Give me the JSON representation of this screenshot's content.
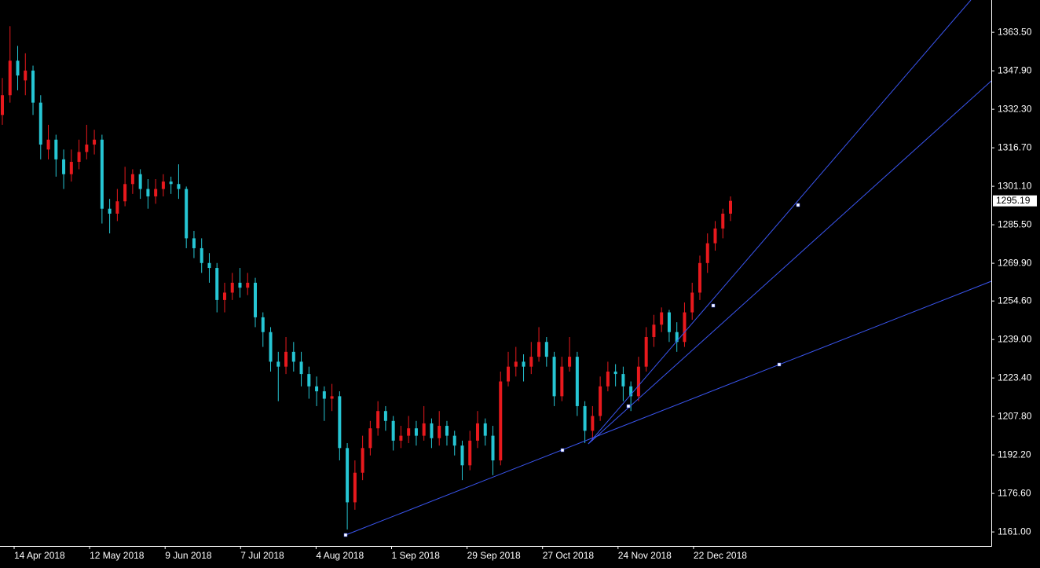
{
  "chart_data": {
    "type": "candlestick",
    "up_color": "#e8191d",
    "down_color": "#26c6d4",
    "ylim": [
      1155.3,
      1376.6
    ],
    "yticks": [
      {
        "value": 1161,
        "label": "1161.00"
      },
      {
        "value": 1176.6,
        "label": "1176.60"
      },
      {
        "value": 1192.2,
        "label": "1192.20"
      },
      {
        "value": 1207.8,
        "label": "1207.80"
      },
      {
        "value": 1223.4,
        "label": "1223.40"
      },
      {
        "value": 1239,
        "label": "1239.00"
      },
      {
        "value": 1254.6,
        "label": "1254.60"
      },
      {
        "value": 1269.9,
        "label": "1269.90"
      },
      {
        "value": 1285.5,
        "label": "1285.50"
      },
      {
        "value": 1301.1,
        "label": "1301.10"
      },
      {
        "value": 1316.7,
        "label": "1316.70"
      },
      {
        "value": 1332.3,
        "label": "1332.30"
      },
      {
        "value": 1347.9,
        "label": "1347.90"
      },
      {
        "value": 1363.5,
        "label": "1363.50"
      }
    ],
    "xtick_labels": [
      "14 Apr 2018",
      "12 May 2018",
      "9 Jun 2018",
      "7 Jul 2018",
      "4 Aug 2018",
      "1 Sep 2018",
      "29 Sep 2018",
      "27 Oct 2018",
      "24 Nov 2018",
      "22 Dec 2018"
    ],
    "last_price": {
      "value": 1295.19,
      "label": "1295.19"
    },
    "candles": [
      [
        1330,
        1345,
        1326,
        1338
      ],
      [
        1338,
        1366,
        1335,
        1352
      ],
      [
        1352,
        1358,
        1340,
        1346
      ],
      [
        1344,
        1355,
        1338,
        1348
      ],
      [
        1348,
        1350,
        1330,
        1335
      ],
      [
        1335,
        1338,
        1312,
        1318
      ],
      [
        1316,
        1326,
        1312,
        1320
      ],
      [
        1320,
        1322,
        1305,
        1312
      ],
      [
        1312,
        1316,
        1300,
        1306
      ],
      [
        1306,
        1316,
        1303,
        1311
      ],
      [
        1311,
        1320,
        1308,
        1315
      ],
      [
        1315,
        1326,
        1312,
        1318
      ],
      [
        1318,
        1324,
        1314,
        1320
      ],
      [
        1320,
        1322,
        1286,
        1292
      ],
      [
        1292,
        1296,
        1282,
        1290
      ],
      [
        1290,
        1300,
        1287,
        1295
      ],
      [
        1295,
        1309,
        1293,
        1302
      ],
      [
        1302,
        1308,
        1298,
        1306
      ],
      [
        1306,
        1308,
        1296,
        1300
      ],
      [
        1300,
        1304,
        1292,
        1297
      ],
      [
        1297,
        1304,
        1294,
        1300
      ],
      [
        1300,
        1306,
        1297,
        1303
      ],
      [
        1303,
        1305,
        1298,
        1302
      ],
      [
        1302,
        1310,
        1296,
        1300
      ],
      [
        1300,
        1301,
        1276,
        1280
      ],
      [
        1280,
        1283,
        1272,
        1276
      ],
      [
        1276,
        1280,
        1266,
        1270
      ],
      [
        1270,
        1274,
        1262,
        1268
      ],
      [
        1268,
        1270,
        1250,
        1255
      ],
      [
        1255,
        1262,
        1250,
        1258
      ],
      [
        1258,
        1266,
        1255,
        1262
      ],
      [
        1262,
        1268,
        1256,
        1260
      ],
      [
        1260,
        1266,
        1257,
        1262
      ],
      [
        1262,
        1264,
        1244,
        1248
      ],
      [
        1248,
        1250,
        1236,
        1242
      ],
      [
        1242,
        1244,
        1226,
        1230
      ],
      [
        1230,
        1234,
        1214,
        1228
      ],
      [
        1228,
        1240,
        1225,
        1234
      ],
      [
        1234,
        1238,
        1226,
        1230
      ],
      [
        1230,
        1234,
        1220,
        1225
      ],
      [
        1225,
        1228,
        1215,
        1220
      ],
      [
        1220,
        1224,
        1212,
        1218
      ],
      [
        1218,
        1220,
        1206,
        1215
      ],
      [
        1215,
        1221,
        1210,
        1216
      ],
      [
        1216,
        1218,
        1190,
        1195
      ],
      [
        1195,
        1197,
        1162,
        1173
      ],
      [
        1173,
        1190,
        1170,
        1185
      ],
      [
        1185,
        1200,
        1182,
        1195
      ],
      [
        1195,
        1206,
        1192,
        1203
      ],
      [
        1203,
        1214,
        1200,
        1210
      ],
      [
        1210,
        1212,
        1202,
        1206
      ],
      [
        1206,
        1208,
        1194,
        1198
      ],
      [
        1198,
        1204,
        1195,
        1200
      ],
      [
        1200,
        1208,
        1197,
        1203
      ],
      [
        1203,
        1206,
        1196,
        1200
      ],
      [
        1200,
        1212,
        1198,
        1205
      ],
      [
        1205,
        1207,
        1195,
        1199
      ],
      [
        1199,
        1210,
        1196,
        1204
      ],
      [
        1204,
        1206,
        1196,
        1200
      ],
      [
        1200,
        1202,
        1192,
        1196
      ],
      [
        1196,
        1198,
        1182,
        1188
      ],
      [
        1188,
        1202,
        1186,
        1198
      ],
      [
        1198,
        1210,
        1195,
        1205
      ],
      [
        1205,
        1207,
        1196,
        1200
      ],
      [
        1200,
        1204,
        1184,
        1190
      ],
      [
        1190,
        1226,
        1188,
        1222
      ],
      [
        1222,
        1234,
        1220,
        1228
      ],
      [
        1228,
        1236,
        1224,
        1230
      ],
      [
        1230,
        1233,
        1222,
        1228
      ],
      [
        1228,
        1238,
        1225,
        1232
      ],
      [
        1232,
        1244,
        1230,
        1238
      ],
      [
        1238,
        1240,
        1228,
        1232
      ],
      [
        1232,
        1234,
        1212,
        1216
      ],
      [
        1216,
        1232,
        1214,
        1228
      ],
      [
        1228,
        1240,
        1226,
        1232
      ],
      [
        1232,
        1234,
        1208,
        1212
      ],
      [
        1212,
        1214,
        1197,
        1202
      ],
      [
        1202,
        1212,
        1198,
        1208
      ],
      [
        1208,
        1224,
        1206,
        1220
      ],
      [
        1220,
        1230,
        1218,
        1226
      ],
      [
        1226,
        1229,
        1220,
        1225
      ],
      [
        1225,
        1228,
        1214,
        1220
      ],
      [
        1220,
        1222,
        1210,
        1216
      ],
      [
        1216,
        1232,
        1214,
        1228
      ],
      [
        1228,
        1244,
        1226,
        1240
      ],
      [
        1240,
        1249,
        1236,
        1245
      ],
      [
        1245,
        1252,
        1242,
        1250
      ],
      [
        1250,
        1251,
        1238,
        1242
      ],
      [
        1242,
        1246,
        1234,
        1238
      ],
      [
        1238,
        1254,
        1236,
        1250
      ],
      [
        1250,
        1262,
        1247,
        1258
      ],
      [
        1258,
        1273,
        1255,
        1270
      ],
      [
        1270,
        1282,
        1266,
        1278
      ],
      [
        1278,
        1287,
        1275,
        1284
      ],
      [
        1284,
        1292,
        1280,
        1290
      ],
      [
        1290,
        1297,
        1287,
        1295.19
      ]
    ]
  }
}
